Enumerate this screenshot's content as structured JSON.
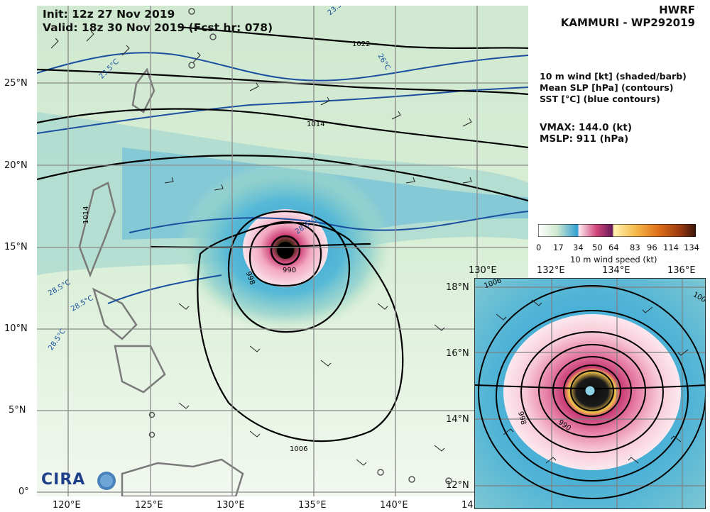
{
  "header": {
    "init": "Init:   12z 27 Nov 2019",
    "valid": "Valid: 18z 30 Nov 2019 (Fcst hr: 078)",
    "model": "HWRF",
    "storm": "KAMMURI - WP292019"
  },
  "fields": {
    "line1": "10 m wind [kt] (shaded/barb)",
    "line2": "Mean SLP [hPa] (contours)",
    "line3": "SST [°C] (blue contours)"
  },
  "stats": {
    "vmax": "VMAX: 144.0 (kt)",
    "mslp": "MSLP:  911 (hPa)"
  },
  "colorbar": {
    "ticks": [
      "0",
      "17",
      "34",
      "50",
      "64",
      "83",
      "96",
      "114",
      "134"
    ],
    "label": "10 m wind speed (kt)"
  },
  "main_axes": {
    "lat_ticks": [
      "25°N",
      "20°N",
      "15°N",
      "10°N",
      "5°N",
      "0°"
    ],
    "lon_ticks": [
      "120°E",
      "125°E",
      "130°E",
      "135°E",
      "140°E",
      "14"
    ]
  },
  "inset_axes": {
    "lon_ticks": [
      "130°E",
      "132°E",
      "134°E",
      "136°E"
    ],
    "lat_ticks": [
      "18°N",
      "16°N",
      "14°N",
      "12°N"
    ]
  },
  "contour_labels": {
    "main": [
      "1022",
      "1014",
      "1014",
      "1006",
      "998",
      "990",
      "23.5°C",
      "23.5",
      "26°C",
      "28.5°C",
      "28.5°C",
      "28.5°C",
      "28.5°C"
    ],
    "inset": [
      "1006",
      "100",
      "998",
      "990"
    ]
  },
  "logo": {
    "text": "CIRA"
  },
  "colors": {
    "land_edge": "#7a7a7a",
    "slp_contour": "#000000",
    "sst_contour": "#1a4fa0",
    "grid": "#8a8a8a"
  }
}
